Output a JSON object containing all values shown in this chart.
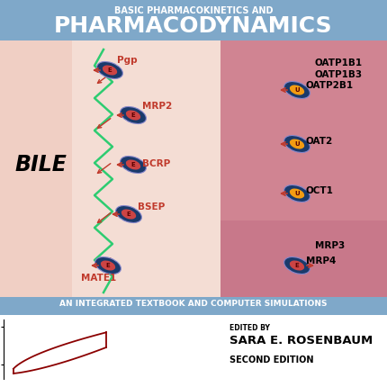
{
  "title_top": "PHARMACODYNAMICS",
  "title_top2": "BASIC PHARMACOKINETICS AND",
  "subtitle": "AN INTEGRATED TEXTBOOK AND COMPUTER SIMULATIONS",
  "header_bg": "#7fa8c9",
  "subheader_bg": "#7fa8c9",
  "left_bg_light": "#f0cfc4",
  "right_bg_dark": "#c8788a",
  "bottom_bg": "#ffffff",
  "editor": "EDITED BY",
  "editor_name": "SARA E. ROSENBAUM",
  "edition": "SECOND EDITION",
  "red_color": "#c0392b",
  "green_color": "#2ecc71",
  "bile_text": "BILE",
  "eye_dark_color": "#1a3a6b",
  "eye_light_color": "#8888cc",
  "eye_orange": "#f39c12",
  "eye_red": "#cc4444"
}
